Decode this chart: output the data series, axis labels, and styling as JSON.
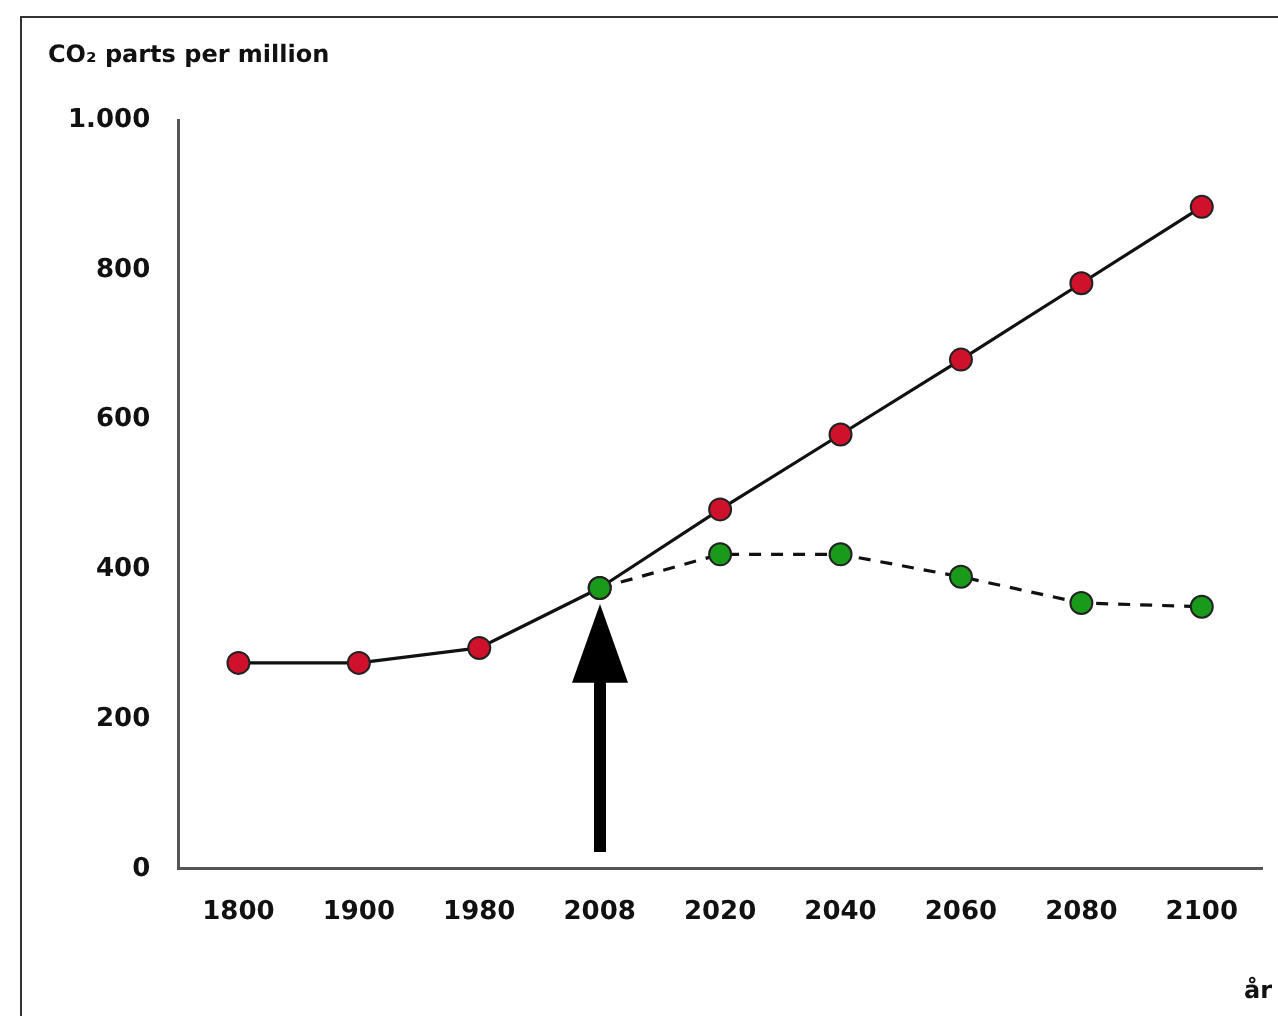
{
  "chart_data": {
    "type": "line",
    "ylabel": "CO₂ parts per million",
    "xlabel": "år",
    "categories": [
      "1800",
      "1900",
      "1980",
      "2008",
      "2020",
      "2040",
      "2060",
      "2080",
      "2100"
    ],
    "series": [
      {
        "color": "#d0112b",
        "line_style": "solid",
        "values": [
          275,
          275,
          295,
          375,
          480,
          580,
          680,
          782,
          884
        ]
      },
      {
        "color": "#1a9a1a",
        "line_style": "dashed",
        "values": [
          null,
          null,
          null,
          375,
          420,
          420,
          390,
          355,
          350
        ]
      }
    ],
    "ylim": [
      0,
      1000
    ],
    "yticks": [
      0,
      200,
      400,
      600,
      800,
      {
        "value": 1000,
        "label": "1.000"
      }
    ],
    "grid": false,
    "legend": false,
    "marker": "circle"
  }
}
